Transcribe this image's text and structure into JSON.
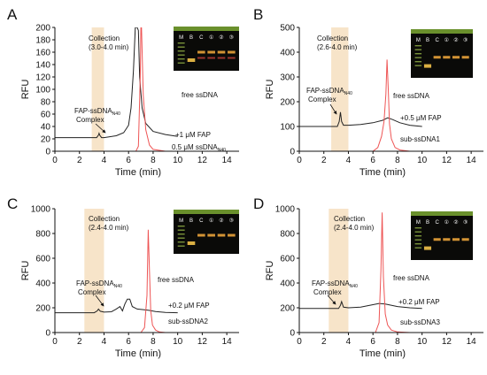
{
  "chart_data": [
    {
      "panel": "A",
      "type": "line",
      "xlabel": "Time (min)",
      "ylabel": "RFU",
      "xlim": [
        0,
        15
      ],
      "ylim": [
        0,
        200
      ],
      "xticks": [
        "0",
        "2",
        "4",
        "6",
        "8",
        "10",
        "12",
        "14"
      ],
      "yticks": [
        "0",
        "20",
        "40",
        "60",
        "80",
        "100",
        "120",
        "140",
        "160",
        "180",
        "200"
      ],
      "collection_window": [
        3.0,
        4.0
      ],
      "collection_label": [
        "Collection",
        "(3.0-4.0 min)"
      ],
      "peak_label": [
        "FAP-ssDNA",
        "N40",
        "Complex"
      ],
      "free_label": "free ssDNA",
      "series": [
        {
          "name": "+1 μM FAP",
          "color": "#222222",
          "labelPre": "+1 μM FAP",
          "labelSub": "",
          "labelPost": "",
          "x": [
            0,
            3.4,
            3.55,
            3.6,
            3.65,
            3.8,
            4.0,
            5.0,
            5.6,
            6.0,
            6.2,
            6.4,
            6.55,
            6.7,
            6.8,
            6.9,
            7.1,
            7.4,
            8.0,
            9.0,
            10.0
          ],
          "y": [
            22,
            22,
            26,
            29,
            26,
            22,
            22,
            25,
            30,
            42,
            70,
            130,
            200,
            200,
            195,
            120,
            70,
            45,
            32,
            27,
            24
          ]
        },
        {
          "name": "0.5 μM ssDNA",
          "color": "#ee5555",
          "labelPre": "0.5 μM ssDNA",
          "labelSub": "N40",
          "labelPost": "",
          "x": [
            0,
            6.6,
            6.8,
            6.95,
            7.0,
            7.05,
            7.2,
            7.4,
            7.7,
            8.0,
            9.0,
            12.0
          ],
          "y": [
            0,
            0,
            8,
            120,
            200,
            200,
            90,
            35,
            10,
            3,
            0,
            0
          ]
        }
      ],
      "gel": {
        "lanes": [
          "M",
          "B",
          "C",
          "①",
          "②",
          "③"
        ],
        "hasSub": true
      }
    },
    {
      "panel": "B",
      "type": "line",
      "xlabel": "Time (min)",
      "ylabel": "RFU",
      "xlim": [
        0,
        15
      ],
      "ylim": [
        0,
        500
      ],
      "xticks": [
        "0",
        "2",
        "4",
        "6",
        "8",
        "10",
        "12",
        "14"
      ],
      "yticks": [
        "0",
        "100",
        "200",
        "300",
        "400",
        "500"
      ],
      "collection_window": [
        2.6,
        4.0
      ],
      "collection_label": [
        "Collection",
        "(2.6-4.0 min)"
      ],
      "peak_label": [
        "FAP-ssDNA",
        "N40",
        "Complex"
      ],
      "free_label": "free ssDNA",
      "series": [
        {
          "name": "+0.5 μM FAP",
          "color": "#222222",
          "labelPre": "+0.5 μM FAP",
          "labelSub": "",
          "labelPost": "",
          "x": [
            0,
            3.1,
            3.25,
            3.35,
            3.45,
            3.6,
            4.0,
            5.0,
            6.0,
            6.8,
            7.2,
            7.6,
            8.2,
            9.0,
            10.0
          ],
          "y": [
            100,
            100,
            120,
            158,
            120,
            105,
            105,
            108,
            115,
            125,
            135,
            128,
            115,
            105,
            100
          ]
        },
        {
          "name": "sub-ssDNA1",
          "color": "#ee5555",
          "labelPre": "sub-ssDNA1",
          "labelSub": "",
          "labelPost": "",
          "x": [
            0,
            6.0,
            6.4,
            6.7,
            6.9,
            7.05,
            7.15,
            7.25,
            7.35,
            7.5,
            7.8,
            8.2,
            9.0,
            12.0
          ],
          "y": [
            0,
            0,
            15,
            60,
            120,
            230,
            370,
            250,
            110,
            50,
            15,
            5,
            0,
            0
          ]
        }
      ],
      "gel": {
        "lanes": [
          "M",
          "B",
          "C",
          "①",
          "②",
          "③"
        ],
        "hasSub": false
      }
    },
    {
      "panel": "C",
      "type": "line",
      "xlabel": "Time (min)",
      "ylabel": "RFU",
      "xlim": [
        0,
        15
      ],
      "ylim": [
        0,
        1000
      ],
      "xticks": [
        "0",
        "2",
        "4",
        "6",
        "8",
        "10",
        "12",
        "14"
      ],
      "yticks": [
        "0",
        "200",
        "400",
        "600",
        "800",
        "1000"
      ],
      "collection_window": [
        2.4,
        4.0
      ],
      "collection_label": [
        "Collection",
        "(2.4-4.0 min)"
      ],
      "peak_label": [
        "FAP-ssDNA",
        "N40",
        "Complex"
      ],
      "free_label": "free ssDNA",
      "series": [
        {
          "name": "+0.2 μM FAP",
          "color": "#222222",
          "labelPre": "+0.2 μM FAP",
          "labelSub": "",
          "labelPost": "",
          "x": [
            0,
            3.2,
            3.45,
            3.55,
            3.7,
            4.0,
            4.6,
            5.0,
            5.3,
            5.5,
            5.7,
            5.9,
            6.1,
            6.3,
            6.7,
            7.2,
            7.6,
            8.2,
            9.0,
            10.0
          ],
          "y": [
            160,
            160,
            175,
            190,
            172,
            165,
            168,
            190,
            210,
            175,
            230,
            270,
            270,
            210,
            190,
            185,
            180,
            170,
            162,
            160
          ]
        },
        {
          "name": "sub-ssDNA2",
          "color": "#ee5555",
          "labelPre": "sub-ssDNA2",
          "labelSub": "",
          "labelPost": "",
          "x": [
            0,
            7.0,
            7.3,
            7.5,
            7.6,
            7.7,
            7.8,
            7.95,
            8.2,
            8.5,
            9.0,
            12.0
          ],
          "y": [
            0,
            0,
            40,
            300,
            830,
            500,
            180,
            60,
            20,
            5,
            0,
            0
          ]
        }
      ],
      "gel": {
        "lanes": [
          "M",
          "B",
          "C",
          "①",
          "②",
          "③"
        ],
        "hasSub": false
      }
    },
    {
      "panel": "D",
      "type": "line",
      "xlabel": "Time (min)",
      "ylabel": "RFU",
      "xlim": [
        0,
        15
      ],
      "ylim": [
        0,
        1000
      ],
      "xticks": [
        "0",
        "2",
        "4",
        "6",
        "8",
        "10",
        "12",
        "14"
      ],
      "yticks": [
        "0",
        "200",
        "400",
        "600",
        "800",
        "1000"
      ],
      "collection_window": [
        2.4,
        4.0
      ],
      "collection_label": [
        "Collection",
        "(2.4-4.0 min)"
      ],
      "peak_label": [
        "FAP-ssDNA",
        "N40",
        "Complex"
      ],
      "free_label": "free ssDNA",
      "series": [
        {
          "name": "+0.2 μM FAP",
          "color": "#222222",
          "labelPre": "+0.2 μM FAP",
          "labelSub": "",
          "labelPost": "",
          "x": [
            0,
            3.2,
            3.35,
            3.45,
            3.6,
            4.0,
            5.0,
            6.0,
            6.5,
            7.0,
            8.0,
            9.0,
            10.0
          ],
          "y": [
            195,
            195,
            220,
            250,
            205,
            200,
            205,
            225,
            235,
            230,
            210,
            200,
            195
          ]
        },
        {
          "name": "sub-ssDNA3",
          "color": "#ee5555",
          "labelPre": "sub-ssDNA3",
          "labelSub": "",
          "labelPost": "",
          "x": [
            0,
            6.2,
            6.5,
            6.65,
            6.75,
            6.85,
            7.0,
            7.2,
            7.5,
            8.0,
            9.0,
            12.0
          ],
          "y": [
            0,
            0,
            80,
            500,
            970,
            450,
            150,
            60,
            20,
            5,
            0,
            0
          ]
        }
      ],
      "gel": {
        "lanes": [
          "M",
          "B",
          "C",
          "①",
          "②",
          "③"
        ],
        "hasSub": false
      }
    }
  ]
}
